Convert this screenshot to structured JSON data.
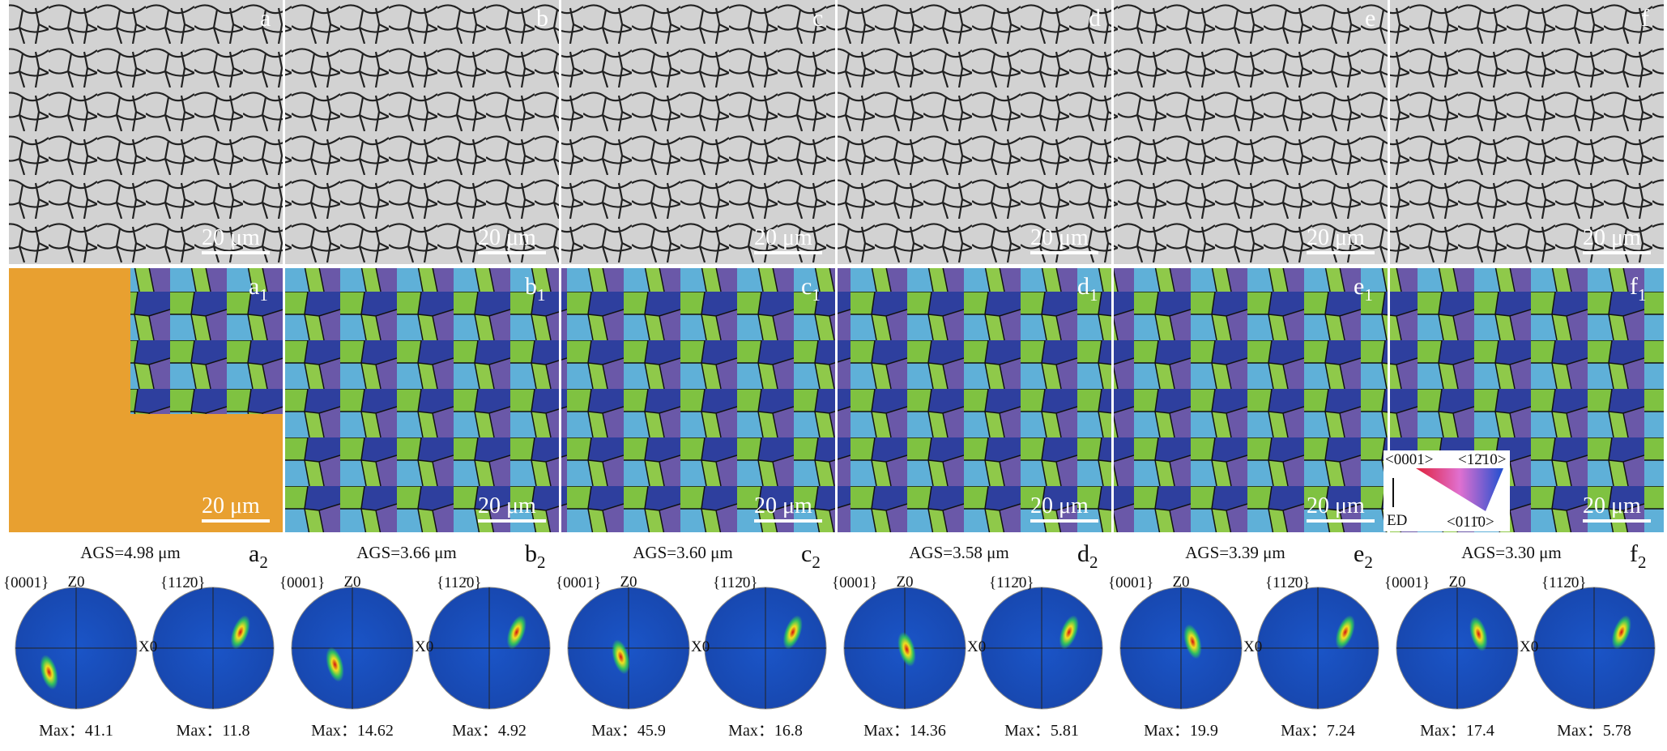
{
  "figure": {
    "scale_bar": "20 μm",
    "pole_figure_labels": {
      "basal": "{0001}",
      "prism": "{112̄0}",
      "z": "Z0",
      "x": "X0"
    },
    "legend": {
      "top_left": "<0001>",
      "top_right": "<12̄10>",
      "bottom_right": "<011̄0>",
      "direction": "ED"
    },
    "panels": [
      {
        "label": "a",
        "map_label": {
          "text": "a",
          "sub": "1"
        },
        "pf_label": {
          "text": "a",
          "sub": "2"
        },
        "ags": "AGS=4.98 μm",
        "max_basal": "Max：41.1",
        "max_prism": "Max：11.8"
      },
      {
        "label": "b",
        "map_label": {
          "text": "b",
          "sub": "1"
        },
        "pf_label": {
          "text": "b",
          "sub": "2"
        },
        "ags": "AGS=3.66 μm",
        "max_basal": "Max：14.62",
        "max_prism": "Max：4.92"
      },
      {
        "label": "c",
        "map_label": {
          "text": "c",
          "sub": "1"
        },
        "pf_label": {
          "text": "c",
          "sub": "2"
        },
        "ags": "AGS=3.60 μm",
        "max_basal": "Max：45.9",
        "max_prism": "Max：16.8"
      },
      {
        "label": "d",
        "map_label": {
          "text": "d",
          "sub": "1"
        },
        "pf_label": {
          "text": "d",
          "sub": "2"
        },
        "ags": "AGS=3.58 μm",
        "max_basal": "Max：14.36",
        "max_prism": "Max：5.81"
      },
      {
        "label": "e",
        "map_label": {
          "text": "e",
          "sub": "1"
        },
        "pf_label": {
          "text": "e",
          "sub": "2"
        },
        "ags": "AGS=3.39 μm",
        "max_basal": "Max：19.9",
        "max_prism": "Max：7.24"
      },
      {
        "label": "f",
        "map_label": {
          "text": "f",
          "sub": "1"
        },
        "pf_label": {
          "text": "f",
          "sub": "2"
        },
        "ags": "AGS=3.30 μm",
        "max_basal": "Max：17.4",
        "max_prism": "Max：5.78"
      }
    ]
  }
}
